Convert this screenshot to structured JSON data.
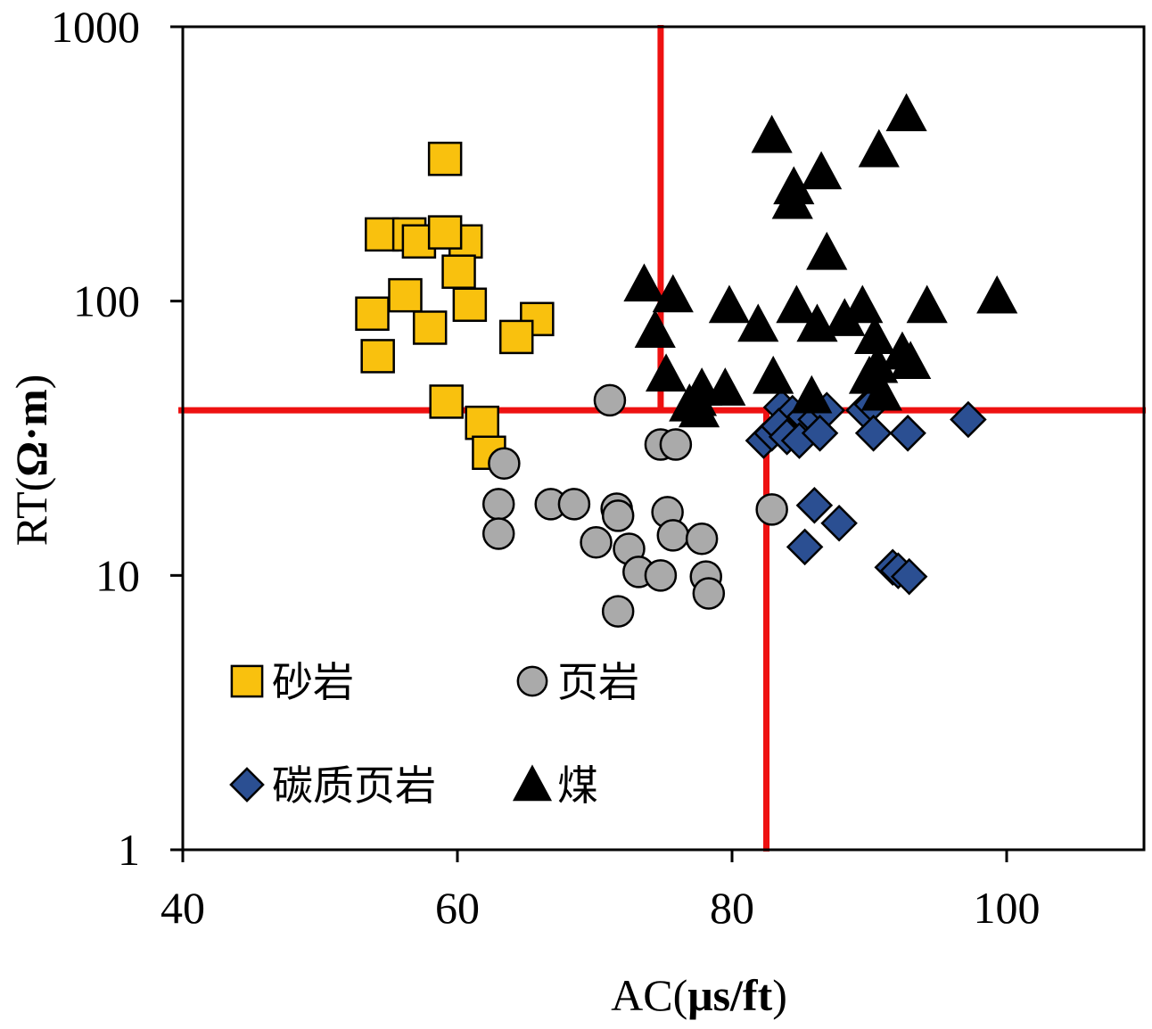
{
  "chart_data": {
    "type": "scatter",
    "xlabel_main": "AC(",
    "xlabel_unit": "μs/ft",
    "xlabel_close": ")",
    "ylabel_main": "RT(",
    "ylabel_unit": "Ω·m",
    "ylabel_close": ")",
    "xlim": [
      40,
      110
    ],
    "ylim": [
      1,
      1000
    ],
    "yscale": "log",
    "xticks": [
      40,
      60,
      80,
      100
    ],
    "xtick_labels": [
      "40",
      "60",
      "80",
      "100"
    ],
    "yticks": [
      1,
      10,
      100,
      1000
    ],
    "ytick_labels": [
      "1",
      "10",
      "100",
      "1000"
    ],
    "grid": false,
    "legend_position": "bottom-left",
    "threshold_lines": {
      "color": "#ee1111",
      "horizontal_y": 40,
      "vertical_upper_x": 74.8,
      "vertical_lower_x": 82.5
    },
    "series": [
      {
        "name": "砂岩",
        "marker": "square",
        "color": "#f9c10e",
        "points": [
          [
            59.1,
            330
          ],
          [
            54.5,
            175
          ],
          [
            56.5,
            175
          ],
          [
            57.2,
            165
          ],
          [
            60.6,
            165
          ],
          [
            59.1,
            178
          ],
          [
            60.1,
            128
          ],
          [
            56.2,
            105
          ],
          [
            60.9,
            97
          ],
          [
            53.8,
            90
          ],
          [
            58.0,
            80
          ],
          [
            65.8,
            86
          ],
          [
            64.3,
            74
          ],
          [
            54.2,
            63
          ],
          [
            59.2,
            43
          ],
          [
            61.8,
            36
          ],
          [
            62.3,
            28
          ]
        ]
      },
      {
        "name": "页岩",
        "marker": "circle",
        "color": "#aaaaaa",
        "points": [
          [
            71.1,
            43.5
          ],
          [
            74.8,
            30
          ],
          [
            75.9,
            30
          ],
          [
            63.4,
            25.6
          ],
          [
            63.0,
            18.2
          ],
          [
            66.8,
            18.2
          ],
          [
            68.5,
            18.2
          ],
          [
            71.6,
            17.5
          ],
          [
            71.7,
            16.5
          ],
          [
            75.3,
            17.0
          ],
          [
            82.9,
            17.4
          ],
          [
            63.0,
            14.2
          ],
          [
            75.7,
            14.0
          ],
          [
            77.8,
            13.6
          ],
          [
            70.1,
            13.2
          ],
          [
            72.5,
            12.5
          ],
          [
            73.2,
            10.3
          ],
          [
            74.8,
            10.0
          ],
          [
            78.1,
            9.9
          ],
          [
            78.3,
            8.6
          ],
          [
            71.7,
            7.4
          ]
        ]
      },
      {
        "name": "碳质页岩",
        "marker": "diamond",
        "color": "#2b4f92",
        "points": [
          [
            83.6,
            41
          ],
          [
            84.4,
            39
          ],
          [
            85.3,
            38
          ],
          [
            86.1,
            37
          ],
          [
            86.9,
            40
          ],
          [
            82.3,
            31
          ],
          [
            82.9,
            33
          ],
          [
            83.4,
            35
          ],
          [
            84.0,
            32
          ],
          [
            84.9,
            31
          ],
          [
            86.4,
            33
          ],
          [
            89.6,
            40
          ],
          [
            90.2,
            42
          ],
          [
            90.3,
            33
          ],
          [
            92.8,
            33
          ],
          [
            97.2,
            37
          ],
          [
            86.0,
            18
          ],
          [
            87.8,
            15.5
          ],
          [
            85.3,
            12.7
          ],
          [
            91.7,
            10.7
          ],
          [
            92.1,
            10.4
          ],
          [
            92.9,
            9.9
          ]
        ]
      },
      {
        "name": "煤",
        "marker": "triangle",
        "color": "#000000",
        "points": [
          [
            92.7,
            480
          ],
          [
            82.9,
            400
          ],
          [
            90.7,
            355
          ],
          [
            86.5,
            295
          ],
          [
            84.5,
            260
          ],
          [
            84.4,
            230
          ],
          [
            86.9,
            150
          ],
          [
            73.6,
            115
          ],
          [
            75.7,
            105
          ],
          [
            79.8,
            96
          ],
          [
            84.7,
            96
          ],
          [
            89.5,
            96
          ],
          [
            94.2,
            96
          ],
          [
            99.3,
            104
          ],
          [
            88.2,
            86
          ],
          [
            81.9,
            82
          ],
          [
            86.2,
            82
          ],
          [
            74.4,
            78
          ],
          [
            90.4,
            74
          ],
          [
            90.6,
            58
          ],
          [
            92.4,
            65
          ],
          [
            93.0,
            60
          ],
          [
            90.0,
            53
          ],
          [
            83.0,
            53
          ],
          [
            75.2,
            54
          ],
          [
            77.8,
            48
          ],
          [
            79.5,
            48
          ],
          [
            77.4,
            44
          ],
          [
            85.8,
            45
          ],
          [
            90.9,
            46
          ],
          [
            76.9,
            42
          ],
          [
            77.6,
            40
          ]
        ]
      }
    ]
  }
}
